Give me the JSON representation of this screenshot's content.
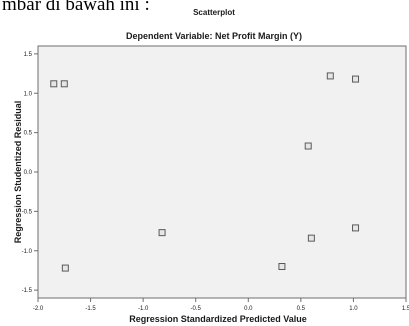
{
  "top_text": "mbar di bawah ini :",
  "chart_data": {
    "type": "scatter",
    "title": "Scatterplot",
    "subtitle": "Dependent Variable: Net Profit Margin (Y)",
    "xlabel": "Regression Standardized Predicted Value",
    "ylabel": "Regression Studentized Residual",
    "xlim": [
      -2.0,
      1.5
    ],
    "ylim": [
      -1.6,
      1.6
    ],
    "x_ticks": [
      -2.0,
      -1.5,
      -1.0,
      -0.5,
      0.0,
      0.5,
      1.0,
      1.5
    ],
    "x_tick_labels": [
      "-2.0",
      "-1.5",
      "-1.0",
      "-0.5",
      "0.0",
      "0.5",
      "1.0",
      "1.5"
    ],
    "y_ticks": [
      1.5,
      1.0,
      0.5,
      0.0,
      -0.5,
      -1.0,
      -1.5
    ],
    "y_tick_labels": [
      "1.5",
      "1.0",
      "0.5",
      "0.0",
      "-0.5",
      "-1.0",
      "-1.5"
    ],
    "grid": false,
    "points": [
      {
        "x": -1.85,
        "y": 1.12
      },
      {
        "x": -1.75,
        "y": 1.12
      },
      {
        "x": -1.74,
        "y": -1.22
      },
      {
        "x": -0.82,
        "y": -0.77
      },
      {
        "x": 0.32,
        "y": -1.2
      },
      {
        "x": 0.57,
        "y": 0.33
      },
      {
        "x": 0.6,
        "y": -0.84
      },
      {
        "x": 0.78,
        "y": 1.22
      },
      {
        "x": 1.02,
        "y": 1.18
      },
      {
        "x": 1.02,
        "y": -0.71
      }
    ],
    "colors": {
      "plot_bg": "#f1f1f1",
      "frame": "#6e6e6e",
      "marker": "#5a5a5a"
    }
  }
}
